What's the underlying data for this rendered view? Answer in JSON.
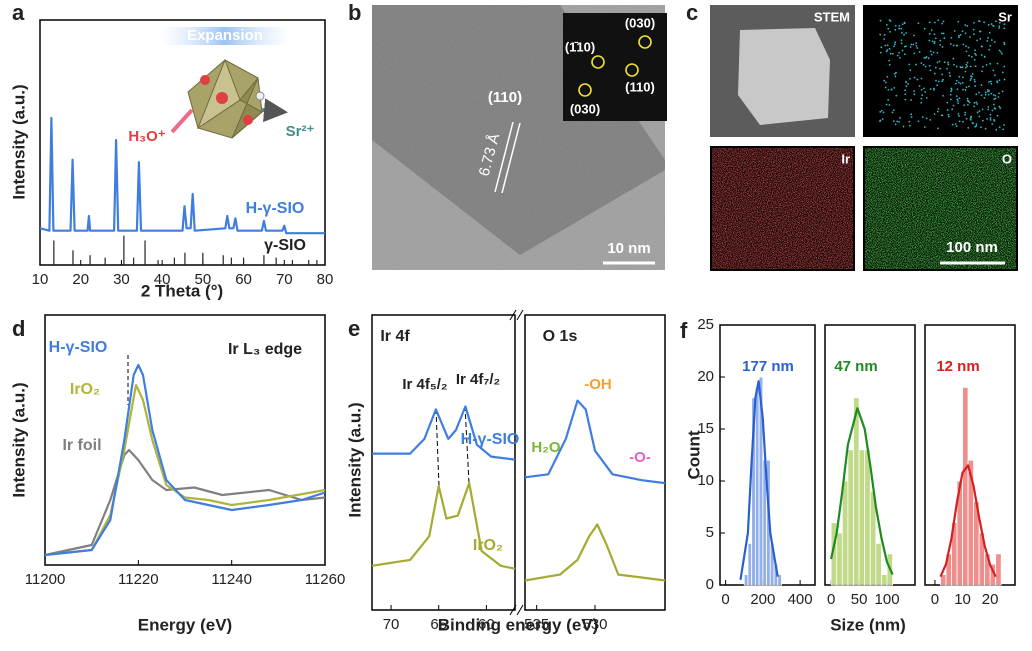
{
  "chart_data": [
    {
      "type": "line",
      "panel": "a",
      "xlabel": "2 Theta (°)",
      "ylabel": "Intensity (a.u.)",
      "xlim": [
        10,
        80
      ],
      "xticks": [
        10,
        20,
        30,
        40,
        50,
        60,
        70,
        80
      ],
      "ylim": [
        0,
        100
      ],
      "annotations": [
        "Expansion",
        "H₃O⁺",
        "Sr²⁺"
      ],
      "series": [
        {
          "name": "H-γ-SIO",
          "color": "#3f7ee0",
          "x": [
            10,
            12.3,
            12.8,
            13.3,
            17.5,
            18,
            18.5,
            21.7,
            22,
            22.3,
            28.2,
            28.7,
            29.2,
            33.8,
            34.3,
            34.8,
            45,
            45.5,
            46,
            47,
            47.5,
            48,
            55.5,
            56,
            56.5,
            57.5,
            58,
            58.5,
            64.5,
            65,
            65.5,
            69.5,
            70,
            70.5,
            80
          ],
          "values": [
            15,
            14,
            60,
            14,
            14,
            43,
            14,
            14,
            20,
            14,
            14,
            51,
            14,
            14,
            42,
            14,
            14,
            24,
            15,
            15,
            29,
            14,
            15,
            20,
            15,
            15,
            19,
            14,
            14,
            18,
            14,
            14,
            16,
            13,
            13
          ]
        }
      ],
      "sticks": {
        "name": "γ-SIO",
        "color": "#222222",
        "x": [
          13.4,
          18.1,
          22.3,
          26,
          30.6,
          33,
          35.8,
          39,
          43,
          45.6,
          50,
          55,
          57,
          60,
          65,
          68,
          72,
          76,
          78
        ],
        "values": [
          10,
          6,
          4,
          3,
          12,
          3,
          10,
          2,
          3,
          5,
          5,
          4,
          3,
          3,
          4,
          3,
          2,
          2,
          2
        ]
      }
    },
    {
      "type": "line",
      "panel": "d",
      "title": "Ir  L₃ edge",
      "xlabel": "Energy (eV)",
      "ylabel": "Intensity (a.u.)",
      "xlim": [
        11200,
        11260
      ],
      "xticks": [
        11200,
        11220,
        11240,
        11260
      ],
      "ylim": [
        0,
        100
      ],
      "series": [
        {
          "name": "Ir foil",
          "color": "#808080",
          "x": [
            11200,
            11210,
            11214,
            11217,
            11218,
            11220,
            11223,
            11226,
            11232,
            11238,
            11248,
            11255,
            11260
          ],
          "values": [
            4,
            8,
            26,
            44,
            46,
            42,
            34,
            30,
            31,
            28,
            30,
            26,
            27
          ]
        },
        {
          "name": "IrO₂",
          "color": "#b0b43a",
          "x": [
            11200,
            11210,
            11214,
            11217,
            11219.5,
            11221,
            11223,
            11226,
            11230,
            11235,
            11240,
            11248,
            11260
          ],
          "values": [
            4,
            6,
            20,
            46,
            72,
            66,
            50,
            32,
            27,
            26,
            24,
            26,
            30
          ]
        },
        {
          "name": "H-γ-SIO",
          "color": "#3f7ee0",
          "x": [
            11200,
            11210,
            11214,
            11217,
            11219,
            11220,
            11221,
            11223,
            11226,
            11230,
            11235,
            11240,
            11248,
            11255,
            11260
          ],
          "values": [
            4,
            6,
            18,
            50,
            76,
            80,
            76,
            54,
            34,
            26,
            24,
            22,
            24,
            26,
            29
          ]
        }
      ]
    },
    {
      "type": "line",
      "panel": "e",
      "title": "Ir 4f",
      "xlabel": "Binding energy (eV)",
      "ylabel": "Intensity (a.u.)",
      "xlim": [
        72,
        57
      ],
      "xticks": [
        70,
        65,
        60
      ],
      "ylim": [
        0,
        100
      ],
      "annotations": [
        "Ir 4f₅/₂",
        "Ir 4f₇/₂"
      ],
      "series": [
        {
          "name": "H-γ-SIO",
          "color": "#3f7ee0",
          "x": [
            72,
            68,
            66.5,
            65.3,
            64,
            63.2,
            62.2,
            61,
            59.5,
            57
          ],
          "values": [
            53,
            53,
            58,
            68,
            58,
            61,
            69,
            56,
            52,
            51
          ]
        },
        {
          "name": "IrO₂",
          "color": "#a5aa30",
          "x": [
            72,
            68,
            66,
            65,
            64.2,
            63,
            61.8,
            60.5,
            58.5,
            57
          ],
          "values": [
            15,
            17,
            25,
            42,
            31,
            32,
            43,
            20,
            15,
            14
          ]
        }
      ]
    },
    {
      "type": "line",
      "title": "O 1s",
      "xlim": [
        536,
        524
      ],
      "xticks": [
        535,
        530
      ],
      "ylim": [
        0,
        100
      ],
      "annotations": [
        "-OH",
        "H₂O",
        "-O-"
      ],
      "series": [
        {
          "color": "#3f7ee0",
          "x": [
            536,
            534,
            532.5,
            531.5,
            530.8,
            530,
            528.5,
            526,
            524
          ],
          "values": [
            45,
            46,
            58,
            71,
            68,
            54,
            46,
            44,
            43
          ]
        },
        {
          "color": "#a5aa30",
          "x": [
            536,
            533,
            531.5,
            530.5,
            529.8,
            529,
            528,
            526,
            524
          ],
          "values": [
            10,
            12,
            17,
            25,
            29,
            22,
            12,
            11,
            10
          ]
        }
      ]
    },
    {
      "type": "histogram",
      "panel": "f",
      "label": "177 nm",
      "ylabel": "Count",
      "color": "#3a6fd8",
      "fit_color": "#2a5fd0",
      "xlim": [
        -30,
        480
      ],
      "xticks": [
        0,
        200,
        400
      ],
      "ylim": [
        0,
        25
      ],
      "yticks": [
        0,
        5,
        10,
        15,
        20,
        25
      ],
      "bins": [
        100,
        120,
        140,
        160,
        180,
        200,
        220,
        240,
        260,
        280,
        300
      ],
      "counts": [
        1,
        4,
        18,
        19,
        20,
        12,
        12,
        4,
        2,
        1
      ],
      "fit": {
        "x": [
          80,
          120,
          140,
          160,
          177,
          200,
          220,
          240,
          280
        ],
        "values": [
          0.5,
          5,
          12,
          18,
          19.6,
          16,
          10,
          5,
          0.8
        ]
      }
    },
    {
      "type": "histogram",
      "label": "47 nm",
      "xlabel": "Size (nm)",
      "color": "#8dbb25",
      "fit_color": "#1f8a1f",
      "xlim": [
        -11,
        150
      ],
      "xticks": [
        0,
        50,
        100
      ],
      "ylim": [
        0,
        25
      ],
      "bins": [
        0,
        10,
        20,
        30,
        40,
        50,
        60,
        70,
        80,
        90,
        100,
        110
      ],
      "counts": [
        6,
        5,
        10,
        13,
        18,
        13,
        13,
        9,
        4,
        1,
        3
      ],
      "fit": {
        "x": [
          0,
          10,
          20,
          30,
          47,
          60,
          70,
          80,
          90,
          100,
          110
        ],
        "values": [
          2.5,
          5,
          9,
          13.5,
          17,
          15,
          11.5,
          7.5,
          4.5,
          2.2,
          1
        ]
      }
    },
    {
      "type": "histogram",
      "label": "12 nm",
      "color": "#e0332f",
      "fit_color": "#d42020",
      "xlim": [
        -3.6,
        29
      ],
      "xticks": [
        0,
        10,
        20
      ],
      "ylim": [
        0,
        25
      ],
      "bins": [
        2,
        4,
        6,
        8,
        10,
        12,
        14,
        16,
        18,
        20,
        22,
        24
      ],
      "counts": [
        1,
        3,
        6,
        10,
        19,
        12,
        8,
        5,
        3,
        2,
        3
      ],
      "fit": {
        "x": [
          2,
          4,
          6,
          8,
          10,
          12,
          14,
          16,
          18,
          20,
          22
        ],
        "values": [
          0.8,
          2,
          4.5,
          8,
          10.8,
          11.5,
          9.5,
          6.5,
          3.8,
          1.9,
          0.8
        ]
      }
    }
  ],
  "micrographs": [
    {
      "panel": "b",
      "labels": [
        "(110)",
        "6.73 Å",
        "10 nm"
      ],
      "inset": [
        "(030)",
        "(1̄10)",
        "(110)",
        "(030)"
      ]
    },
    {
      "panel": "c",
      "tiles": [
        "STEM",
        "Sr",
        "Ir",
        "O"
      ],
      "scale": "100 nm"
    }
  ]
}
